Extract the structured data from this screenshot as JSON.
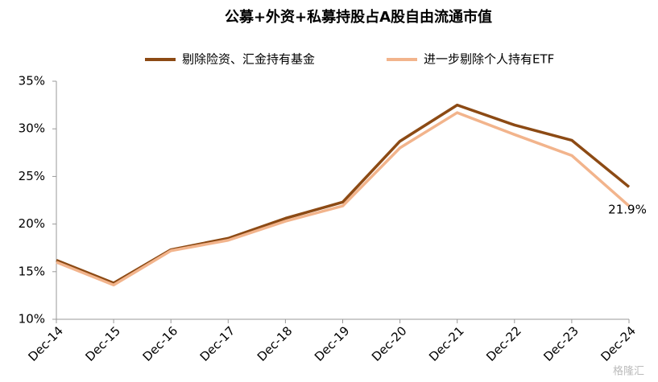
{
  "chart_data": {
    "type": "line",
    "title": "公募+外资+私募持股占A股自由流通市值",
    "categories": [
      "Dec-14",
      "Dec-15",
      "Dec-16",
      "Dec-17",
      "Dec-18",
      "Dec-19",
      "Dec-20",
      "Dec-21",
      "Dec-22",
      "Dec-23",
      "Dec-24"
    ],
    "series": [
      {
        "name": "剔除险资、汇金持有基金",
        "color": "#8c4a14",
        "values": [
          16.2,
          13.8,
          17.3,
          18.5,
          20.6,
          22.3,
          28.7,
          32.5,
          30.4,
          28.8,
          23.9
        ]
      },
      {
        "name": "进一步剔除个人持有ETF",
        "color": "#f2b48c",
        "values": [
          16.0,
          13.6,
          17.2,
          18.3,
          20.3,
          21.9,
          28.0,
          31.7,
          29.4,
          27.2,
          21.9
        ],
        "value_labels": [
          null,
          null,
          null,
          null,
          null,
          null,
          null,
          null,
          null,
          null,
          "21.9%"
        ]
      }
    ],
    "ylim": [
      10,
      35
    ],
    "yticks": [
      {
        "value": 10,
        "label": "10%"
      },
      {
        "value": 15,
        "label": "15%"
      },
      {
        "value": 20,
        "label": "20%"
      },
      {
        "value": 25,
        "label": "25%"
      },
      {
        "value": 30,
        "label": "30%"
      },
      {
        "value": 35,
        "label": "35%"
      }
    ],
    "grid": false,
    "legend": "top",
    "watermark": "格隆汇"
  }
}
